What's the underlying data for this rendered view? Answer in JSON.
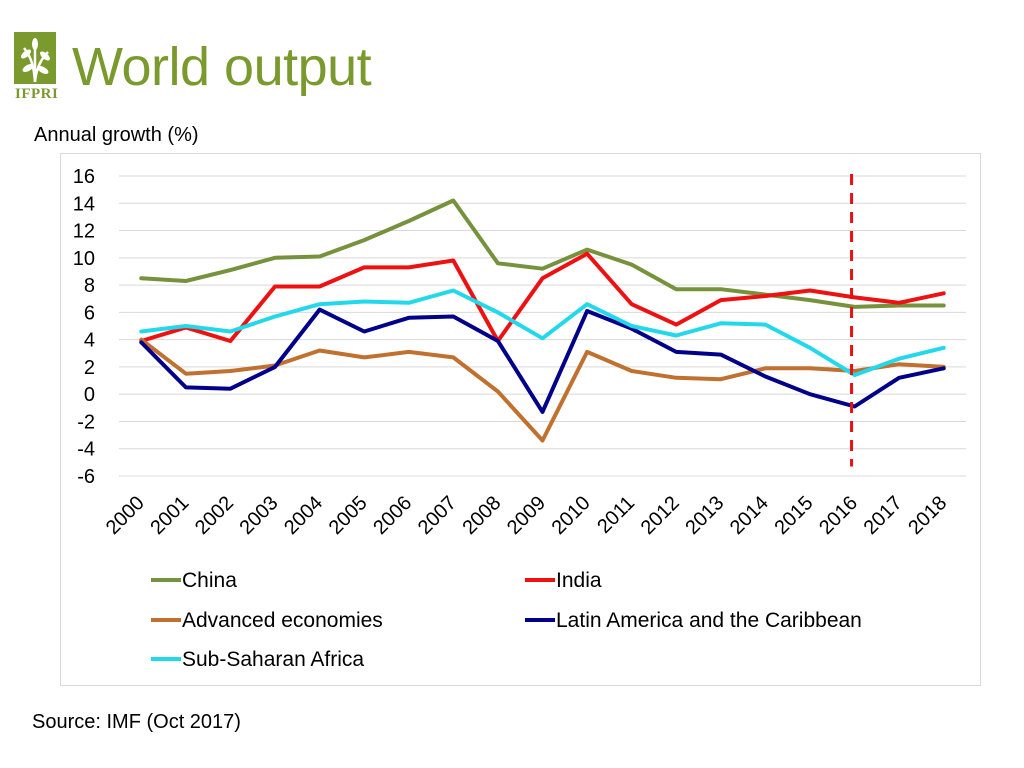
{
  "title": "World output",
  "logo_text": "IFPRI",
  "subtitle": "Annual growth (%)",
  "source": "Source: IMF (Oct 2017)",
  "chart_data": {
    "type": "line",
    "title": "World output",
    "ylabel": "Annual growth (%)",
    "xlabel": "",
    "ylim": [
      -6,
      16
    ],
    "yticks": [
      16,
      14,
      12,
      10,
      8,
      6,
      4,
      2,
      0,
      -2,
      -4,
      -6
    ],
    "grid": true,
    "categories": [
      "2000",
      "2001",
      "2002",
      "2003",
      "2004",
      "2005",
      "2006",
      "2007",
      "2008",
      "2009",
      "2010",
      "2011",
      "2012",
      "2013",
      "2014",
      "2015",
      "2016",
      "2017",
      "2018"
    ],
    "marker_line": {
      "category": "2016",
      "color": "#e81010",
      "style": "dashed"
    },
    "series": [
      {
        "name": "China",
        "color": "#76923c",
        "values": [
          8.5,
          8.3,
          9.1,
          10.0,
          10.1,
          11.3,
          12.7,
          14.2,
          9.6,
          9.2,
          10.6,
          9.5,
          7.7,
          7.7,
          7.3,
          6.9,
          6.4,
          6.5,
          6.5
        ]
      },
      {
        "name": "India",
        "color": "#ee1111",
        "values": [
          3.9,
          4.9,
          3.9,
          7.9,
          7.9,
          9.3,
          9.3,
          9.8,
          3.9,
          8.5,
          10.3,
          6.6,
          5.1,
          6.9,
          7.2,
          7.6,
          7.1,
          6.7,
          7.4
        ]
      },
      {
        "name": "Advanced economies",
        "color": "#c0702f",
        "values": [
          4.0,
          1.5,
          1.7,
          2.1,
          3.2,
          2.7,
          3.1,
          2.7,
          0.2,
          -3.4,
          3.1,
          1.7,
          1.2,
          1.1,
          1.9,
          1.9,
          1.7,
          2.2,
          2.0
        ]
      },
      {
        "name": "Latin America and the Caribbean",
        "color": "#00008b",
        "values": [
          3.8,
          0.5,
          0.4,
          2.0,
          6.2,
          4.6,
          5.6,
          5.7,
          3.9,
          -1.3,
          6.1,
          4.8,
          3.1,
          2.9,
          1.3,
          0.0,
          -0.9,
          1.2,
          1.9
        ]
      },
      {
        "name": "Sub-Saharan Africa",
        "color": "#22d8ea",
        "values": [
          4.6,
          5.0,
          4.6,
          5.7,
          6.6,
          6.8,
          6.7,
          7.6,
          6.0,
          4.1,
          6.6,
          5.0,
          4.3,
          5.2,
          5.1,
          3.4,
          1.4,
          2.6,
          3.4
        ]
      }
    ]
  }
}
